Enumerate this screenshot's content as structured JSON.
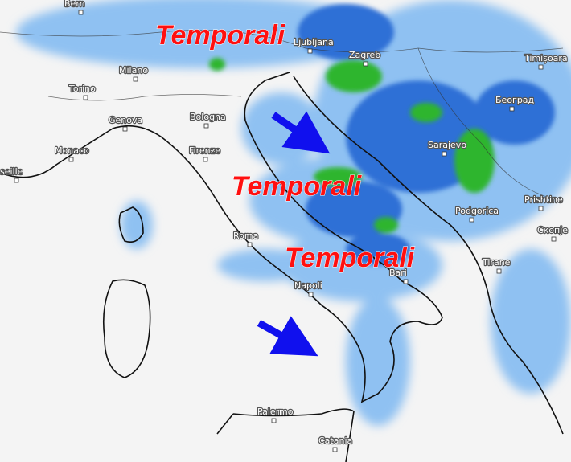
{
  "map": {
    "annotations": [
      "Temporali",
      "Temporali",
      "Temporali"
    ],
    "cities": [
      "Bern",
      "Ljubljana",
      "Zagreb",
      "Timișoara",
      "Milano",
      "Torino",
      "Београд",
      "Genova",
      "Bologna",
      "Firenze",
      "Monaco",
      "seille",
      "Sarajevo",
      "Prishtine",
      "Podgorica",
      "Скопје",
      "Roma",
      "Tirane",
      "Bari",
      "Napoli",
      "Palermo",
      "Catania"
    ]
  }
}
